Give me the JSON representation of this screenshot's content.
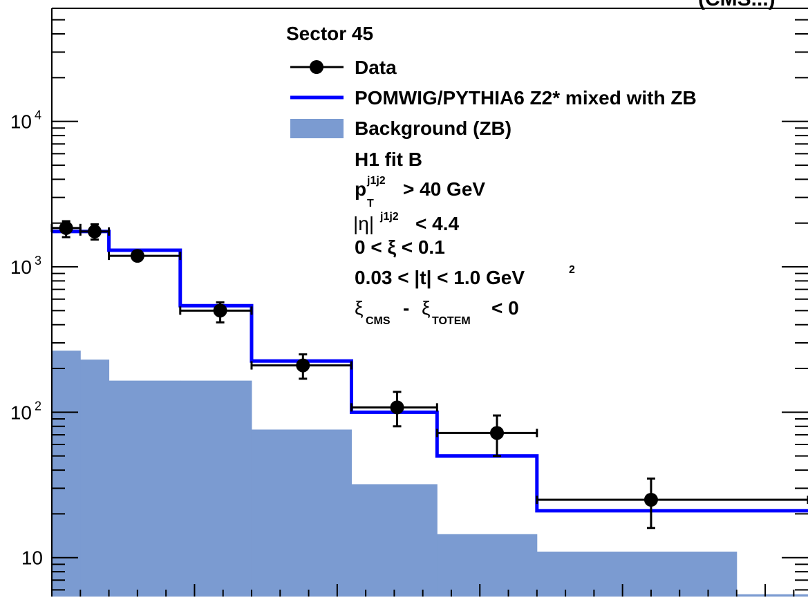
{
  "top_label": "(CMS...)",
  "chart_data": {
    "type": "bar",
    "yscale": "log",
    "ylim": [
      5.4,
      60000
    ],
    "xlabel": "",
    "ylabel": "",
    "bin_edges": [
      0,
      1,
      2,
      4.5,
      7,
      10.5,
      13.5,
      17,
      24,
      26.5
    ],
    "y_ticks": [
      {
        "value": 10,
        "base": "10",
        "exp": ""
      },
      {
        "value": 100,
        "base": "10",
        "exp": "2"
      },
      {
        "value": 1000,
        "base": "10",
        "exp": "3"
      },
      {
        "value": 10000,
        "base": "10",
        "exp": "4"
      }
    ],
    "series": [
      {
        "name": "Background (ZB)",
        "style": "fill",
        "color": "#7b9bd1",
        "values": [
          265,
          230,
          165,
          165,
          76,
          32,
          14.5,
          11,
          5.6
        ]
      },
      {
        "name": "POMWIG/PYTHIA6 Z2* mixed with ZB",
        "style": "step",
        "color": "#0000ff",
        "values": [
          1750,
          1750,
          1300,
          540,
          225,
          100,
          50,
          21,
          21
        ]
      },
      {
        "name": "Data",
        "style": "points",
        "color": "#000000",
        "points": [
          {
            "x": 0.5,
            "y": 1850,
            "xlo": 0,
            "xhi": 1,
            "ylo": 1600,
            "yhi": 2060
          },
          {
            "x": 1.5,
            "y": 1750,
            "xlo": 1,
            "xhi": 2,
            "ylo": 1540,
            "yhi": 1960
          },
          {
            "x": 3.0,
            "y": 1190,
            "xlo": 2,
            "xhi": 4.5,
            "ylo": 1150,
            "yhi": 1230
          },
          {
            "x": 5.9,
            "y": 500,
            "xlo": 4.5,
            "xhi": 7,
            "ylo": 415,
            "yhi": 570
          },
          {
            "x": 8.8,
            "y": 210,
            "xlo": 7,
            "xhi": 10.5,
            "ylo": 170,
            "yhi": 250
          },
          {
            "x": 12.1,
            "y": 108,
            "xlo": 10.5,
            "xhi": 13.5,
            "ylo": 80,
            "yhi": 138
          },
          {
            "x": 15.6,
            "y": 72,
            "xlo": 13.5,
            "xhi": 17,
            "ylo": 50,
            "yhi": 95
          },
          {
            "x": 21.0,
            "y": 25,
            "xlo": 17,
            "xhi": 26.5,
            "ylo": 16,
            "yhi": 35
          }
        ]
      }
    ],
    "legend": {
      "title": "Sector 45",
      "entries": [
        {
          "label": "Data",
          "marker": "point"
        },
        {
          "label": "POMWIG/PYTHIA6 Z2* mixed with ZB",
          "marker": "line"
        },
        {
          "label": "Background (ZB)",
          "marker": "box"
        }
      ],
      "cuts": {
        "fit": "H1 fit B",
        "pt_p": "p",
        "pt_sup": "j1j2",
        "pt_sub": "T",
        "pt_rest": "> 40 GeV",
        "eta_sym": "|η|",
        "eta_sup": "j1j2",
        "eta_rest": "< 4.4",
        "xi": "0 < ξ < 0.1",
        "t_main": "0.03 < |t| < 1.0 GeV",
        "t_sup": "2",
        "xi_a": "ξ",
        "xi_a_sub": "CMS",
        "xi_minus": "-",
        "xi_b": "ξ",
        "xi_b_sub": "TOTEM",
        "xi_rest": "< 0"
      }
    }
  }
}
